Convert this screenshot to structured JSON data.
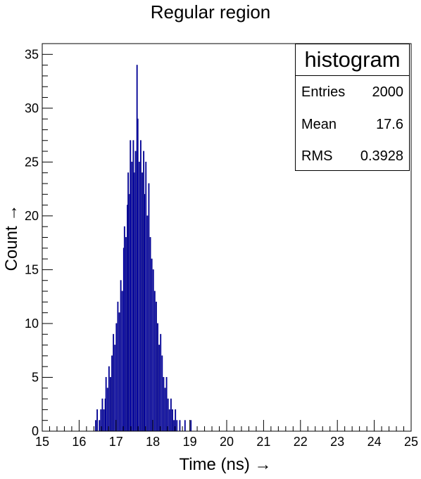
{
  "chart_data": {
    "type": "bar",
    "title": "Regular region",
    "xlabel": "Time (ns) →",
    "ylabel": "Count →",
    "xlim": [
      15,
      25
    ],
    "ylim": [
      0,
      36
    ],
    "xticks": [
      "15",
      "16",
      "17",
      "18",
      "19",
      "20",
      "21",
      "22",
      "23",
      "24",
      "25"
    ],
    "yticks": [
      "0",
      "5",
      "10",
      "15",
      "20",
      "25",
      "30",
      "35"
    ],
    "bar_color": "#0000ff",
    "bar_edge_color": "#000080",
    "bin_width": 0.02,
    "bins": [
      {
        "x": 16.44,
        "y": 1
      },
      {
        "x": 16.48,
        "y": 2
      },
      {
        "x": 16.54,
        "y": 1
      },
      {
        "x": 16.58,
        "y": 2
      },
      {
        "x": 16.62,
        "y": 3
      },
      {
        "x": 16.66,
        "y": 2
      },
      {
        "x": 16.7,
        "y": 3
      },
      {
        "x": 16.72,
        "y": 5
      },
      {
        "x": 16.76,
        "y": 4
      },
      {
        "x": 16.8,
        "y": 6
      },
      {
        "x": 16.84,
        "y": 5
      },
      {
        "x": 16.88,
        "y": 7
      },
      {
        "x": 16.92,
        "y": 9
      },
      {
        "x": 16.96,
        "y": 8
      },
      {
        "x": 17.0,
        "y": 10
      },
      {
        "x": 17.04,
        "y": 12
      },
      {
        "x": 17.08,
        "y": 11
      },
      {
        "x": 17.12,
        "y": 14
      },
      {
        "x": 17.16,
        "y": 13
      },
      {
        "x": 17.2,
        "y": 17
      },
      {
        "x": 17.22,
        "y": 19
      },
      {
        "x": 17.26,
        "y": 18
      },
      {
        "x": 17.3,
        "y": 21
      },
      {
        "x": 17.32,
        "y": 24
      },
      {
        "x": 17.36,
        "y": 22
      },
      {
        "x": 17.38,
        "y": 27
      },
      {
        "x": 17.42,
        "y": 25
      },
      {
        "x": 17.46,
        "y": 27
      },
      {
        "x": 17.48,
        "y": 24
      },
      {
        "x": 17.52,
        "y": 26
      },
      {
        "x": 17.56,
        "y": 34
      },
      {
        "x": 17.58,
        "y": 29
      },
      {
        "x": 17.62,
        "y": 25
      },
      {
        "x": 17.66,
        "y": 27
      },
      {
        "x": 17.7,
        "y": 24
      },
      {
        "x": 17.74,
        "y": 26
      },
      {
        "x": 17.76,
        "y": 22
      },
      {
        "x": 17.8,
        "y": 25
      },
      {
        "x": 17.84,
        "y": 20
      },
      {
        "x": 17.88,
        "y": 23
      },
      {
        "x": 17.92,
        "y": 18
      },
      {
        "x": 17.96,
        "y": 16
      },
      {
        "x": 18.0,
        "y": 15
      },
      {
        "x": 18.04,
        "y": 13
      },
      {
        "x": 18.08,
        "y": 12
      },
      {
        "x": 18.12,
        "y": 10
      },
      {
        "x": 18.16,
        "y": 8
      },
      {
        "x": 18.2,
        "y": 9
      },
      {
        "x": 18.24,
        "y": 7
      },
      {
        "x": 18.28,
        "y": 5
      },
      {
        "x": 18.32,
        "y": 4
      },
      {
        "x": 18.36,
        "y": 5
      },
      {
        "x": 18.4,
        "y": 3
      },
      {
        "x": 18.44,
        "y": 2
      },
      {
        "x": 18.48,
        "y": 3
      },
      {
        "x": 18.52,
        "y": 2
      },
      {
        "x": 18.56,
        "y": 1
      },
      {
        "x": 18.6,
        "y": 2
      },
      {
        "x": 18.64,
        "y": 1
      },
      {
        "x": 18.72,
        "y": 1
      },
      {
        "x": 18.86,
        "y": 1
      },
      {
        "x": 19.02,
        "y": 1
      }
    ]
  },
  "stats": {
    "name": "histogram",
    "rows": [
      {
        "key": "Entries",
        "value": "2000"
      },
      {
        "key": "Mean",
        "value": "17.6"
      },
      {
        "key": "RMS",
        "value": "0.3928"
      }
    ]
  }
}
